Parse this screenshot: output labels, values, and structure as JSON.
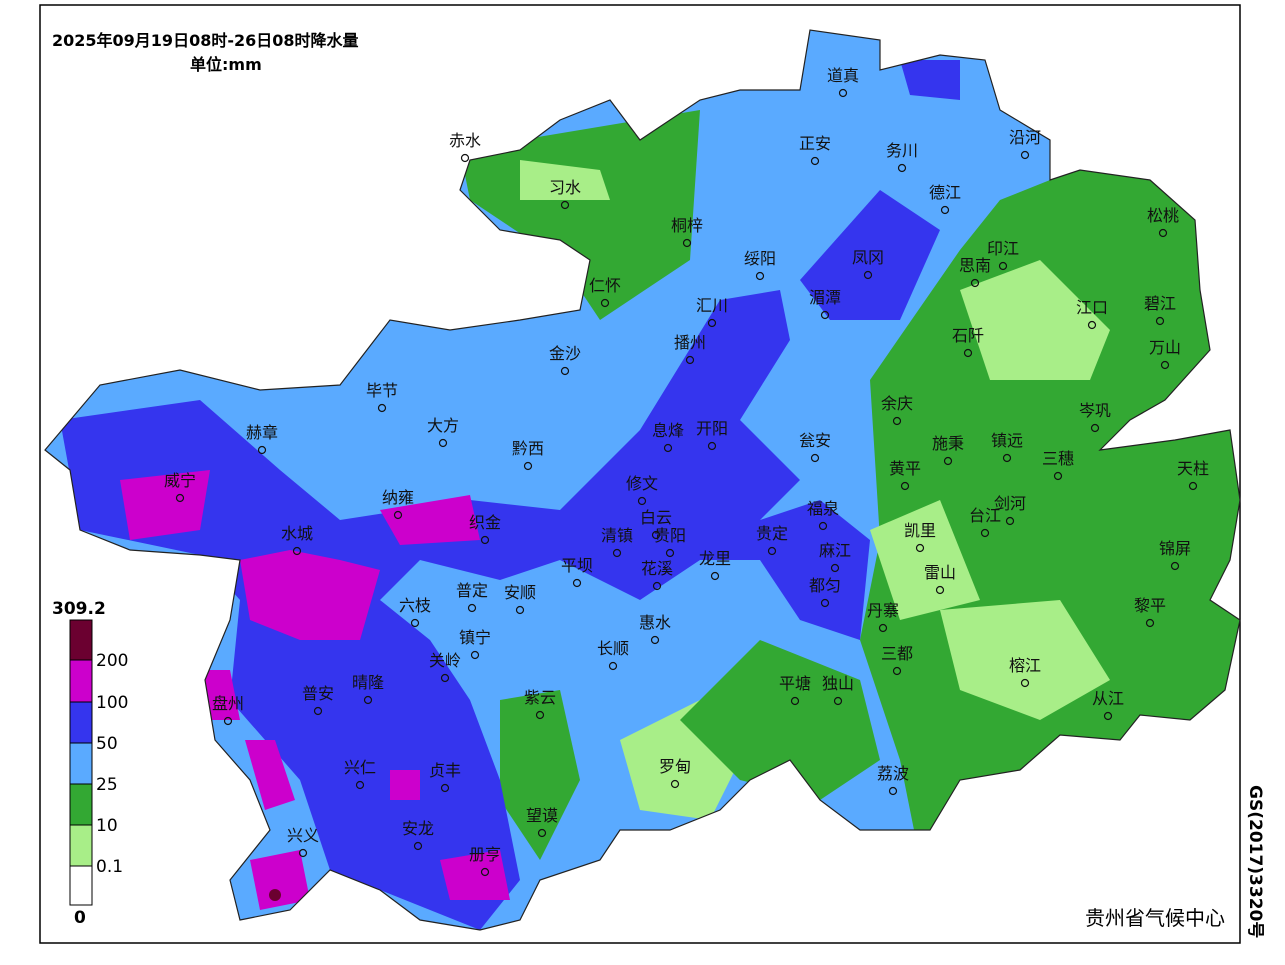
{
  "title": "2025年09月19日08时-26日08时降水量",
  "unit": "单位:mm",
  "legend": {
    "max": 309.2,
    "min": 0,
    "breaks": [
      200,
      100,
      50,
      25,
      10,
      0.1
    ],
    "colors": [
      "#6b0030",
      "#cc00cc",
      "#3535ee",
      "#5aaaff",
      "#33a833",
      "#a8ee88",
      "#ffffff"
    ]
  },
  "cities": [
    "赤水",
    "习水",
    "桐梓",
    "道真",
    "正安",
    "务川",
    "沿河",
    "德江",
    "松桃",
    "绥阳",
    "凤冈",
    "印江",
    "思南",
    "仁怀",
    "汇川",
    "湄潭",
    "江口",
    "碧江",
    "金沙",
    "播州",
    "石阡",
    "万山",
    "毕节",
    "余庆",
    "岑巩",
    "大方",
    "息烽",
    "开阳",
    "瓮安",
    "施秉",
    "镇远",
    "三穗",
    "赫章",
    "黔西",
    "黄平",
    "天柱",
    "威宁",
    "修文",
    "剑河",
    "纳雍",
    "织金",
    "白云",
    "福泉",
    "台江",
    "水城",
    "清镇",
    "贵阳",
    "贵定",
    "麻江",
    "凯里",
    "锦屏",
    "平坝",
    "花溪",
    "龙里",
    "都匀",
    "雷山",
    "普定",
    "安顺",
    "六枝",
    "丹寨",
    "黎平",
    "惠水",
    "镇宁",
    "长顺",
    "三都",
    "关岭",
    "榕江",
    "盘州",
    "普安",
    "晴隆",
    "紫云",
    "平塘",
    "独山",
    "从江",
    "罗甸",
    "兴仁",
    "贞丰",
    "荔波",
    "望谟",
    "安龙",
    "兴义",
    "册亨"
  ],
  "footer": "贵州省气候中心",
  "map_number": "GS(2017)3320号"
}
